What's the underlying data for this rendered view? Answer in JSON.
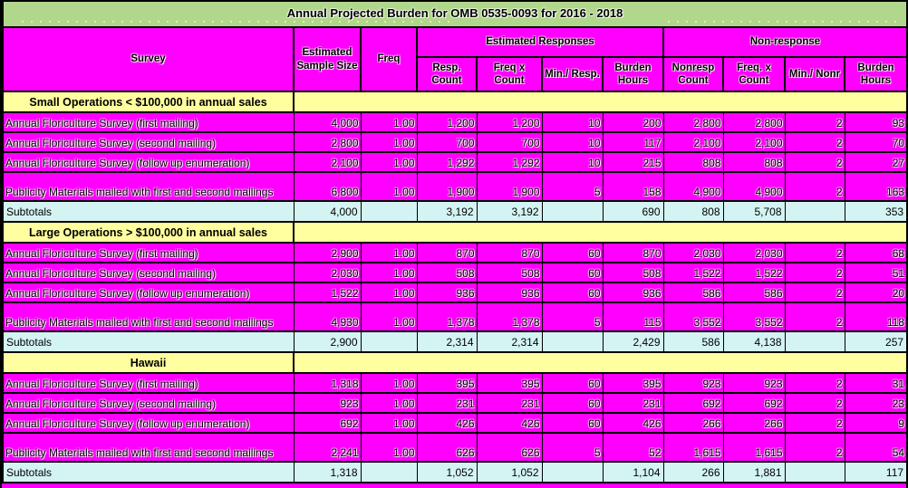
{
  "title": "Annual Projected Burden for OMB 0535-0093 for 2016 - 2018",
  "header": {
    "survey": "Survey",
    "sample_size": "Estimated Sample Size",
    "freq": "Freq",
    "groups": {
      "estimated_responses": "Estimated Responses",
      "non_response": "Non-response"
    },
    "sub_columns": [
      "Resp. Count",
      "Freq x Count",
      "Min./ Resp.",
      "Burden Hours",
      "Nonresp Count",
      "Freq. x Count",
      "Min./ Nonr",
      "Burden Hours"
    ]
  },
  "sections": [
    {
      "label": "Small Operations < $100,000 in annual sales",
      "rows": [
        {
          "survey": "Annual Floriculture Survey (first mailing)",
          "tall": false,
          "values": [
            "4,000",
            "1.00",
            "1,200",
            "1,200",
            "10",
            "200",
            "2,800",
            "2,800",
            "2",
            "93"
          ]
        },
        {
          "survey": "Annual Floriculture Survey (second mailing)",
          "tall": false,
          "values": [
            "2,800",
            "1.00",
            "700",
            "700",
            "10",
            "117",
            "2,100",
            "2,100",
            "2",
            "70"
          ]
        },
        {
          "survey": "Annual Floriculture Survey (follow up enumeration)",
          "tall": false,
          "values": [
            "2,100",
            "1.00",
            "1,292",
            "1,292",
            "10",
            "215",
            "808",
            "808",
            "2",
            "27"
          ]
        },
        {
          "survey": "Publicity Materials mailed with first and second mailings",
          "tall": true,
          "values": [
            "6,800",
            "1.00",
            "1,900",
            "1,900",
            "5",
            "158",
            "4,900",
            "4,900",
            "2",
            "163"
          ]
        }
      ],
      "subtotals": {
        "label": "Subtotals",
        "values": [
          "4,000",
          "",
          "3,192",
          "3,192",
          "",
          "690",
          "808",
          "5,708",
          "",
          "353"
        ]
      }
    },
    {
      "label": "Large Operations > $100,000 in annual sales",
      "rows": [
        {
          "survey": "Annual Floriculture Survey (first mailing)",
          "tall": false,
          "values": [
            "2,900",
            "1.00",
            "870",
            "870",
            "60",
            "870",
            "2,030",
            "2,030",
            "2",
            "68"
          ]
        },
        {
          "survey": "Annual Floriculture Survey (second mailing)",
          "tall": false,
          "values": [
            "2,030",
            "1.00",
            "508",
            "508",
            "60",
            "508",
            "1,522",
            "1,522",
            "2",
            "51"
          ]
        },
        {
          "survey": "Annual Floriculture Survey (follow up enumeration)",
          "tall": false,
          "values": [
            "1,522",
            "1.00",
            "936",
            "936",
            "60",
            "936",
            "586",
            "586",
            "2",
            "20"
          ]
        },
        {
          "survey": "Publicity Materials mailed with first and second mailings",
          "tall": true,
          "values": [
            "4,930",
            "1.00",
            "1,378",
            "1,378",
            "5",
            "115",
            "3,552",
            "3,552",
            "2",
            "118"
          ]
        }
      ],
      "subtotals": {
        "label": "Subtotals",
        "values": [
          "2,900",
          "",
          "2,314",
          "2,314",
          "",
          "2,429",
          "586",
          "4,138",
          "",
          "257"
        ]
      }
    },
    {
      "label": "Hawaii",
      "rows": [
        {
          "survey": "Annual Floriculture Survey (first mailing)",
          "tall": false,
          "values": [
            "1,318",
            "1.00",
            "395",
            "395",
            "60",
            "395",
            "923",
            "923",
            "2",
            "31"
          ]
        },
        {
          "survey": "Annual Floriculture Survey (second mailing)",
          "tall": false,
          "values": [
            "923",
            "1.00",
            "231",
            "231",
            "60",
            "231",
            "692",
            "692",
            "2",
            "23"
          ]
        },
        {
          "survey": "Annual Floriculture Survey (follow up enumeration)",
          "tall": false,
          "values": [
            "692",
            "1.00",
            "426",
            "426",
            "60",
            "426",
            "266",
            "266",
            "2",
            "9"
          ]
        },
        {
          "survey": "Publicity Materials mailed with first and second mailings",
          "tall": true,
          "values": [
            "2,241",
            "1.00",
            "626",
            "626",
            "5",
            "52",
            "1,615",
            "1,615",
            "2",
            "54"
          ]
        }
      ],
      "subtotals": {
        "label": "Subtotals",
        "values": [
          "1,318",
          "",
          "1,052",
          "1,052",
          "",
          "1,104",
          "266",
          "1,881",
          "",
          "117"
        ]
      }
    }
  ],
  "colors": {
    "title_bg": "#b1d78c",
    "data_cell_bg": "#ff00ff",
    "section_bg": "#ffffa0",
    "subtotal_bg": "#d4f3f3",
    "border": "#000000",
    "text": "#000000"
  }
}
